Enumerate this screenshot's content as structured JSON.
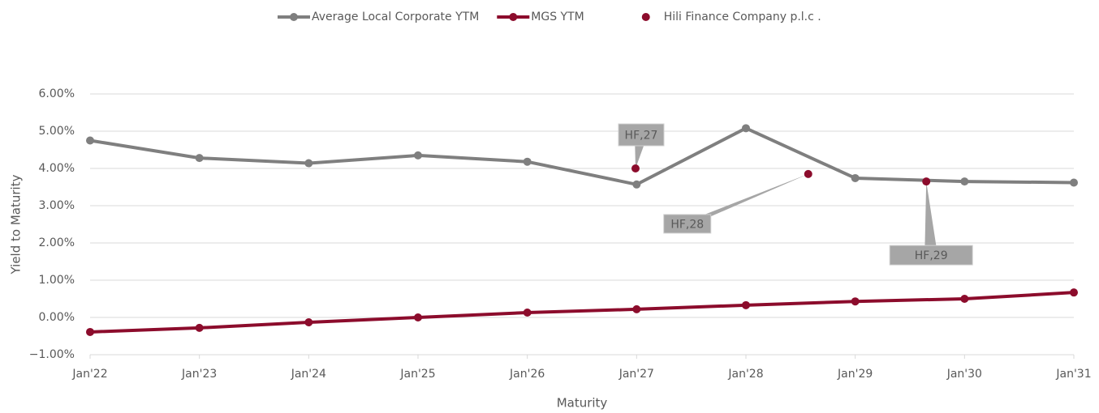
{
  "chart_data": {
    "type": "line",
    "x_label": "Maturity",
    "y_label": "Yield to Maturity",
    "xlim": [
      2022,
      2031
    ],
    "xticks": [
      {
        "value": 2022,
        "label": "Jan'22"
      },
      {
        "value": 2023,
        "label": "Jan'23"
      },
      {
        "value": 2024,
        "label": "Jan'24"
      },
      {
        "value": 2025,
        "label": "Jan'25"
      },
      {
        "value": 2026,
        "label": "Jan'26"
      },
      {
        "value": 2027,
        "label": "Jan'27"
      },
      {
        "value": 2028,
        "label": "Jan'28"
      },
      {
        "value": 2029,
        "label": "Jan'29"
      },
      {
        "value": 2030,
        "label": "Jan'30"
      },
      {
        "value": 2031,
        "label": "Jan'31"
      }
    ],
    "ylim": [
      -1,
      6
    ],
    "yticks": [
      {
        "value": 6,
        "label": "6.00%"
      },
      {
        "value": 5,
        "label": "5.00%"
      },
      {
        "value": 4,
        "label": "4.00%"
      },
      {
        "value": 3,
        "label": "3.00%"
      },
      {
        "value": 2,
        "label": "2.00%"
      },
      {
        "value": 1,
        "label": "1.00%"
      },
      {
        "value": 0,
        "label": "0.00%"
      },
      {
        "value": -1,
        "label": "−1.00%"
      }
    ],
    "grid": true,
    "legend": "top",
    "series": [
      {
        "name": "Average Local Corporate YTM",
        "color": "#7f7f7f",
        "kind": "line",
        "x": [
          2022,
          2023,
          2024,
          2025,
          2026,
          2027,
          2028,
          2029,
          2030,
          2031
        ],
        "values": [
          4.75,
          4.28,
          4.14,
          4.35,
          4.18,
          3.57,
          5.08,
          3.74,
          3.65,
          3.62
        ]
      },
      {
        "name": "MGS YTM",
        "color": "#8c0c2c",
        "kind": "line",
        "x": [
          2022,
          2023,
          2024,
          2025,
          2026,
          2027,
          2028,
          2029,
          2030,
          2031
        ],
        "values": [
          -0.39,
          -0.28,
          -0.13,
          0.0,
          0.13,
          0.22,
          0.33,
          0.43,
          0.5,
          0.67
        ]
      },
      {
        "name": "Hili Finance Company p.l.c   .",
        "color": "#8c0c2c",
        "kind": "scatter",
        "x": [
          2026.99,
          2028.57,
          2029.65
        ],
        "values": [
          4.0,
          3.85,
          3.65
        ],
        "labels": [
          "HF,27",
          "HF,28",
          "HF,29"
        ]
      }
    ]
  }
}
